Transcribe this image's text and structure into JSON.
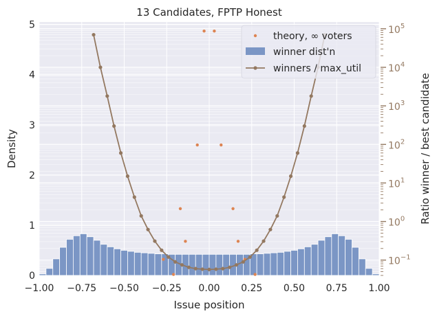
{
  "chart_data": {
    "type": "bar",
    "title": "13 Candidates, FPTP Honest",
    "xlabel": "Issue position",
    "ylabel": "Density",
    "y2label": "Ratio winner / best candidate",
    "xlim": [
      -1.0,
      1.0
    ],
    "ylim": [
      0,
      5.05
    ],
    "y2_scale": "log",
    "y2lim": [
      0.04,
      150000
    ],
    "xticks": [
      "−1.00",
      "−0.75",
      "−0.50",
      "−0.25",
      "0.00",
      "0.25",
      "0.50",
      "0.75",
      "1.00"
    ],
    "xtick_values": [
      -1.0,
      -0.75,
      -0.5,
      -0.25,
      0.0,
      0.25,
      0.5,
      0.75,
      1.0
    ],
    "yticks": [
      "0",
      "1",
      "2",
      "3",
      "4",
      "5"
    ],
    "ytick_values": [
      0,
      1,
      2,
      3,
      4,
      5
    ],
    "y2ticks": [
      "10^{-1}",
      "10^{0}",
      "10^{1}",
      "10^{2}",
      "10^{3}",
      "10^{4}",
      "10^{5}"
    ],
    "y2tick_values": [
      0.1,
      1,
      10,
      100,
      1000,
      10000,
      100000
    ],
    "grid": true,
    "legend_position": "top-right",
    "legend": [
      "theory, ∞ voters",
      "winner dist'n",
      "winners / max_util"
    ],
    "colors": {
      "histogram": "#7b96c5",
      "theory": "#dd8452",
      "ratio_line": "#937860",
      "background": "#eaeaf2",
      "grid": "#ffffff",
      "text": "#262626"
    },
    "series": [
      {
        "name": "winner dist'n",
        "type": "histogram",
        "bin_edges": [
          -1.0,
          -0.96,
          -0.92,
          -0.88,
          -0.84,
          -0.8,
          -0.76,
          -0.72,
          -0.68,
          -0.64,
          -0.6,
          -0.56,
          -0.52,
          -0.48,
          -0.44,
          -0.4,
          -0.36,
          -0.32,
          -0.28,
          -0.24,
          -0.2,
          -0.16,
          -0.12,
          -0.08,
          -0.04,
          0.0,
          0.04,
          0.08,
          0.12,
          0.16,
          0.2,
          0.24,
          0.28,
          0.32,
          0.36,
          0.4,
          0.44,
          0.48,
          0.52,
          0.56,
          0.6,
          0.64,
          0.68,
          0.72,
          0.76,
          0.8,
          0.84,
          0.88,
          0.92,
          0.96,
          1.0
        ],
        "values": [
          0.03,
          0.14,
          0.33,
          0.56,
          0.72,
          0.79,
          0.83,
          0.77,
          0.7,
          0.62,
          0.57,
          0.53,
          0.5,
          0.48,
          0.46,
          0.45,
          0.44,
          0.43,
          0.43,
          0.42,
          0.42,
          0.42,
          0.42,
          0.42,
          0.42,
          0.42,
          0.42,
          0.42,
          0.42,
          0.42,
          0.42,
          0.43,
          0.43,
          0.44,
          0.45,
          0.46,
          0.48,
          0.5,
          0.53,
          0.57,
          0.62,
          0.7,
          0.77,
          0.83,
          0.79,
          0.72,
          0.56,
          0.33,
          0.14,
          0.03
        ]
      },
      {
        "name": "theory, ∞ voters",
        "type": "scatter",
        "x": [
          -0.27,
          -0.21,
          -0.17,
          -0.14,
          -0.07,
          -0.03,
          0.03,
          0.07,
          0.14,
          0.17,
          0.21,
          0.27
        ],
        "y": [
          0.32,
          0.02,
          1.33,
          0.68,
          2.6,
          4.87,
          4.87,
          2.6,
          1.33,
          0.68,
          0.32,
          0.02
        ]
      },
      {
        "name": "winners / max_util",
        "type": "line",
        "axis": "right",
        "x": [
          -0.68,
          -0.64,
          -0.6,
          -0.56,
          -0.52,
          -0.48,
          -0.44,
          -0.4,
          -0.36,
          -0.32,
          -0.28,
          -0.24,
          -0.2,
          -0.16,
          -0.12,
          -0.08,
          -0.04,
          0.0,
          0.04,
          0.08,
          0.12,
          0.16,
          0.2,
          0.24,
          0.28,
          0.32,
          0.36,
          0.4,
          0.44,
          0.48,
          0.52,
          0.56,
          0.6,
          0.64,
          0.68
        ],
        "y": [
          70000,
          10000,
          1800,
          300,
          60,
          15,
          4.3,
          1.4,
          0.62,
          0.31,
          0.18,
          0.12,
          0.09,
          0.075,
          0.065,
          0.06,
          0.058,
          0.057,
          0.058,
          0.06,
          0.065,
          0.075,
          0.09,
          0.12,
          0.18,
          0.31,
          0.62,
          1.4,
          4.3,
          15,
          60,
          300,
          1800,
          10000,
          70000
        ]
      }
    ]
  }
}
